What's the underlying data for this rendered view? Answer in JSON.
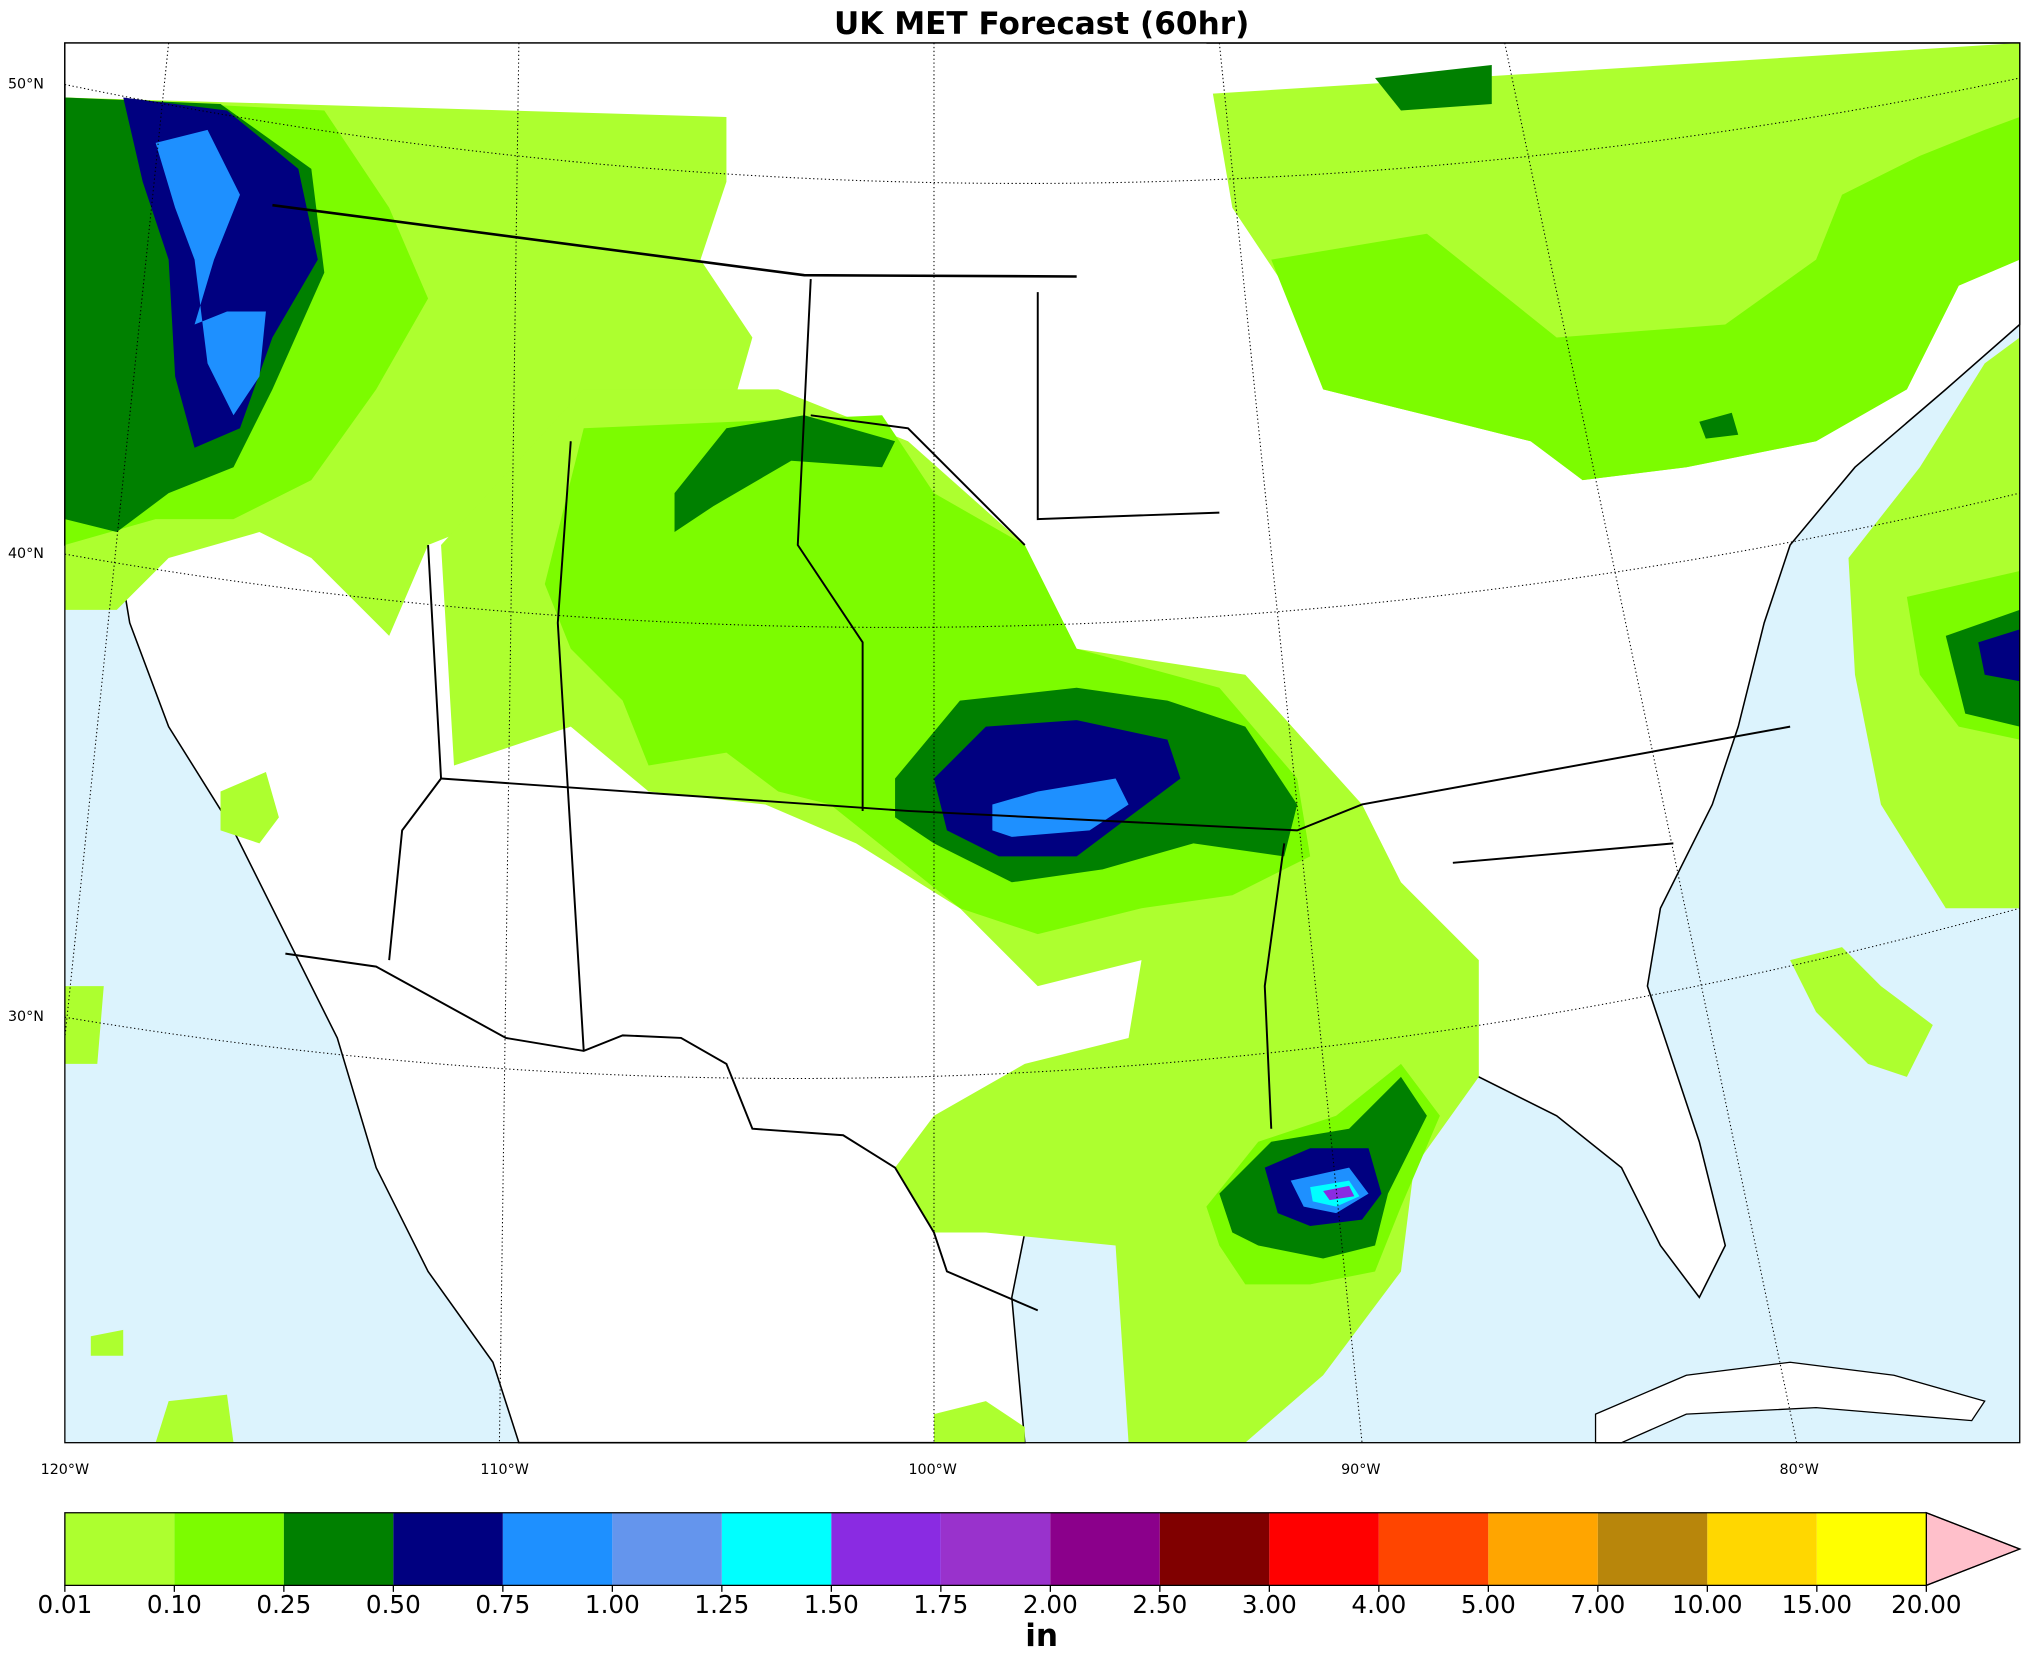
{
  "title": "UK MET Forecast (60hr)",
  "map": {
    "lat_labels": [
      "50°N",
      "40°N",
      "30°N"
    ],
    "lon_labels": [
      "120°W",
      "110°W",
      "100°W",
      "90°W",
      "80°W"
    ]
  },
  "colorbar": {
    "ticks": [
      {
        "value": 0.01,
        "label": "0.01"
      },
      {
        "value": 0.1,
        "label": "0.10"
      },
      {
        "value": 0.25,
        "label": "0.25"
      },
      {
        "value": 0.5,
        "label": "0.50"
      },
      {
        "value": 0.75,
        "label": "0.75"
      },
      {
        "value": 1,
        "label": "1.00"
      },
      {
        "value": 1.25,
        "label": "1.25"
      },
      {
        "value": 1.5,
        "label": "1.50"
      },
      {
        "value": 1.75,
        "label": "1.75"
      },
      {
        "value": 2,
        "label": "2.00"
      },
      {
        "value": 2.5,
        "label": "2.50"
      },
      {
        "value": 3,
        "label": "3.00"
      },
      {
        "value": 4,
        "label": "4.00"
      },
      {
        "value": 5,
        "label": "5.00"
      },
      {
        "value": 7,
        "label": "7.00"
      },
      {
        "value": 10,
        "label": "10.00"
      },
      {
        "value": 15,
        "label": "15.00"
      },
      {
        "value": 20,
        "label": "20.00"
      }
    ],
    "colors": [
      "#adff2f",
      "#7cfc00",
      "#008000",
      "#000080",
      "#1e90ff",
      "#6495ed",
      "#00ffff",
      "#8a2be2",
      "#9932cc",
      "#8b008b",
      "#800000",
      "#ff0000",
      "#ff4500",
      "#ffa500",
      "#b8860b",
      "#ffd700",
      "#ffff00"
    ],
    "extend_color": "#ffc0cb",
    "unit": "in"
  }
}
